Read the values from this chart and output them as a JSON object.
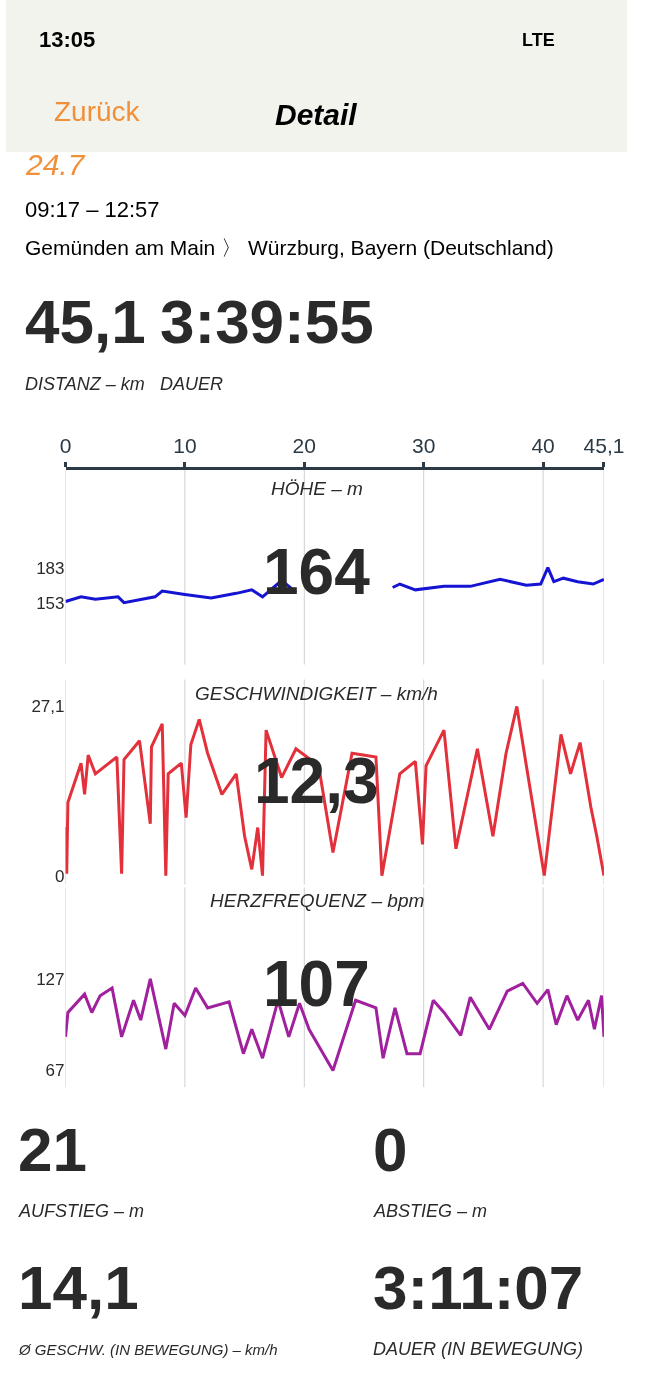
{
  "chart_data": [
    {
      "type": "line",
      "title": "HÖHE – m",
      "xlim": [
        0,
        45.1
      ],
      "xticks": [
        0,
        10,
        20,
        30,
        40,
        {
          "value": 45.1,
          "label": "45,1"
        }
      ],
      "ylim": [
        100,
        267
      ],
      "yticks": [
        153,
        183
      ],
      "grid": "x",
      "x": [
        0,
        1.3,
        2.5,
        4.4,
        4.9,
        7.5,
        8.1,
        10.0,
        12.2,
        14.3,
        15.6,
        16.5,
        18.1,
        19.3,
        20.5,
        26.0,
        27.4,
        28.0,
        29.3,
        31.7,
        33.9,
        36.4,
        38.6,
        39.8,
        40.4,
        40.9,
        41.7,
        42.9,
        44.2,
        45.1
      ],
      "values": [
        154,
        158,
        156,
        158,
        153,
        158,
        163,
        160,
        157,
        161,
        164,
        158,
        172,
        162,
        null,
        null,
        166,
        169,
        164,
        167,
        167,
        173,
        168,
        169,
        183,
        171,
        174,
        171,
        169,
        173
      ],
      "color": "#1414d2",
      "annotations": [
        "13:05",
        "LTE",
        "Zurück",
        "Detail",
        "24.7",
        "09:17 – 12:57",
        "Gemünden am Main 〉 Würzburg, Bayern (Deutschland)",
        "45,1",
        "3:39:55",
        "DISTANZ – km",
        "DAUER",
        "164"
      ]
    },
    {
      "type": "line",
      "title": "GESCHWINDIGKEIT – km/h",
      "xlim": [
        0,
        45.1
      ],
      "xticks": [
        0,
        10,
        20,
        30,
        40,
        45.1
      ],
      "ylim": [
        -1.4,
        31.4
      ],
      "yticks": [
        0,
        {
          "value": 27.1,
          "label": "27,1"
        }
      ],
      "grid": "x",
      "tick_labels": "y",
      "x": [
        0,
        0.1,
        0.2,
        1.3,
        1.6,
        1.9,
        2.5,
        4.3,
        4.7,
        4.9,
        6.2,
        7.1,
        7.2,
        8.1,
        8.4,
        8.6,
        9.7,
        10.1,
        10.5,
        11.2,
        11.9,
        13.1,
        14.3,
        15.0,
        15.6,
        16.1,
        16.5,
        16.8,
        18.1,
        19.3,
        21.2,
        22.4,
        24.0,
        26.0,
        26.5,
        28.0,
        29.3,
        29.9,
        30.2,
        31.7,
        32.7,
        34.5,
        35.8,
        36.9,
        37.8,
        38.6,
        40.1,
        41.5,
        42.3,
        43.1,
        44.0,
        44.5,
        45.1
      ],
      "values": [
        7.8,
        0.3,
        11.7,
        18.0,
        13.0,
        19.3,
        16.3,
        19.0,
        0.3,
        18.6,
        21.6,
        8.3,
        20.6,
        24.3,
        0,
        16.3,
        18.0,
        9.3,
        21.0,
        25.0,
        19.6,
        13.0,
        16.3,
        6.3,
        1.0,
        7.7,
        0,
        23.3,
        15.7,
        20.3,
        17.6,
        3.7,
        19.6,
        19.0,
        0,
        16.3,
        18.3,
        5.0,
        17.6,
        23.3,
        4.3,
        20.3,
        6.3,
        19.6,
        27.1,
        17.6,
        0,
        22.6,
        16.3,
        21.3,
        11.0,
        6.3,
        0
      ],
      "color": "#e2313b",
      "annotations": [
        "12,3"
      ]
    },
    {
      "type": "line",
      "title": "HERZFREQUENZ – bpm",
      "xlim": [
        0,
        45.1
      ],
      "xticks": [
        0,
        10,
        20,
        30,
        40,
        45.1
      ],
      "ylim": [
        56,
        187
      ],
      "yticks": [
        67,
        127
      ],
      "grid": "x",
      "tick_labels": "y",
      "x": [
        0,
        0.2,
        1.6,
        2.2,
        2.9,
        3.9,
        4.7,
        5.7,
        6.3,
        7.1,
        8.4,
        9.1,
        10.0,
        10.9,
        11.9,
        13.7,
        14.9,
        15.6,
        16.5,
        17.8,
        18.7,
        19.6,
        20.4,
        22.4,
        24.3,
        26.0,
        26.6,
        27.6,
        28.6,
        29.7,
        30.8,
        31.7,
        33.1,
        33.9,
        35.5,
        37.0,
        38.3,
        39.5,
        40.4,
        41.1,
        42.0,
        42.9,
        43.8,
        44.3,
        44.9,
        45.1
      ],
      "values": [
        89,
        105,
        117,
        105,
        116,
        121,
        89,
        113,
        100,
        127,
        81,
        111,
        103,
        121,
        108,
        112,
        78,
        94,
        75,
        113,
        89,
        111,
        94,
        67,
        113,
        108,
        75,
        108,
        78,
        78,
        113,
        105,
        90,
        115,
        94,
        119,
        124,
        111,
        120,
        97,
        116,
        100,
        113,
        94,
        116,
        89
      ],
      "color": "#a0209e",
      "annotations": [
        "107",
        "21",
        "AUFSTIEG – m",
        "0",
        "ABSTIEG – m",
        "14,1",
        "Ø GESCHW. (IN BEWEGUNG) – km/h",
        "3:11:07",
        "DAUER (IN BEWEGUNG)"
      ]
    }
  ]
}
